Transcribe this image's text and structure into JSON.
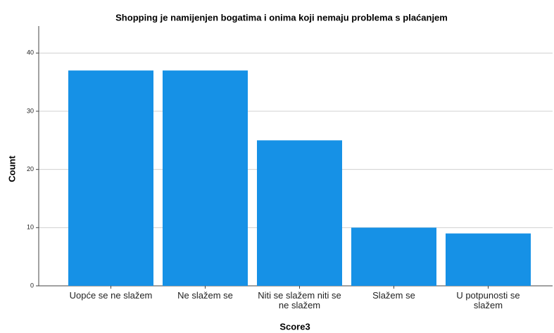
{
  "chart_data": {
    "type": "bar",
    "title": "Shopping je namijenjen bogatima i onima koji nemaju problema s plaćanjem",
    "x_label": "Score3",
    "y_label": "Count",
    "categories": [
      "Uopće se ne slažem",
      "Ne slažem se",
      "Niti se slažem niti se ne slažem",
      "Slažem se",
      "U potpunosti se slažem"
    ],
    "values": [
      37,
      37,
      25,
      10,
      9
    ],
    "color": "#1691e6",
    "ylim": [
      0,
      45
    ],
    "yticks": [
      0,
      10,
      20,
      30,
      40
    ],
    "grid": true
  }
}
